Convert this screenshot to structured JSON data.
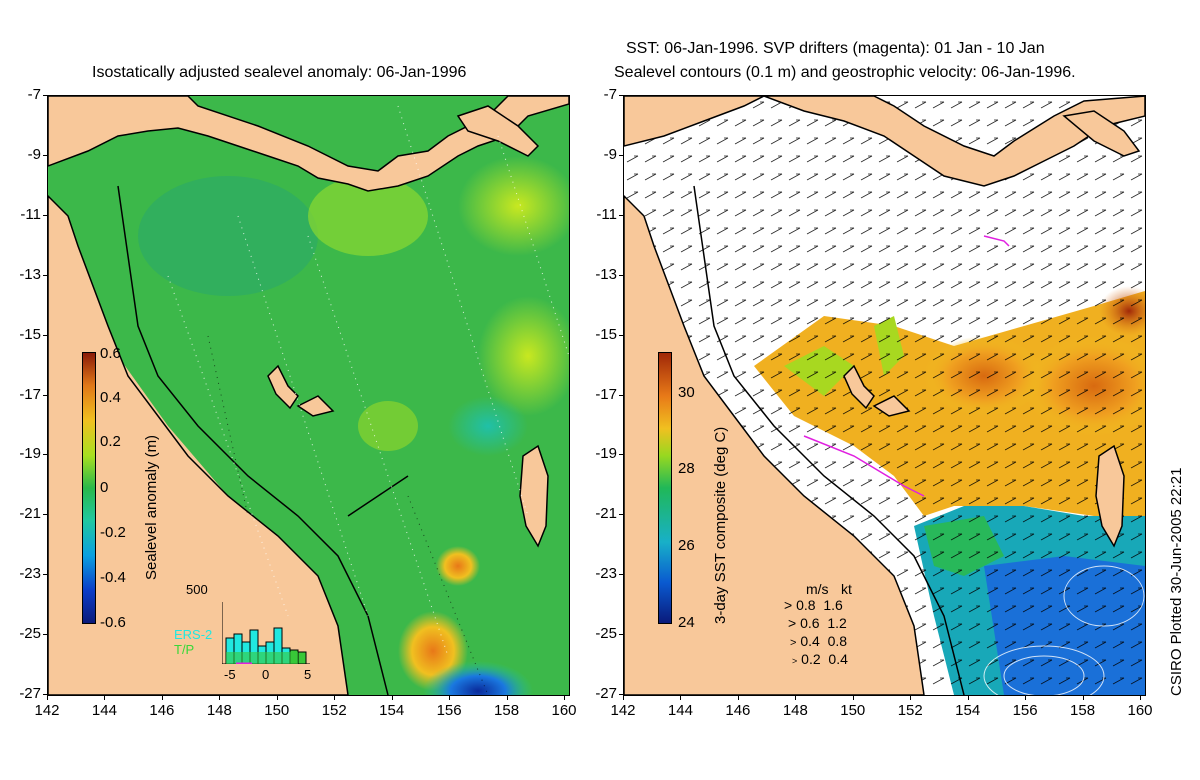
{
  "left": {
    "title": "Isostatically adjusted sealevel anomaly: 06-Jan-1996",
    "colorbar_label": "Sealevel anomaly (m)",
    "colorbar_ticks": [
      "0.6",
      "0.4",
      "0.2",
      "0",
      "-0.2",
      "-0.4",
      "-0.6"
    ],
    "histogram": {
      "ymax_label": "500",
      "x_ticks": [
        "-5",
        "0",
        "5"
      ],
      "legend": [
        "ERS-2",
        "T/P"
      ]
    }
  },
  "right": {
    "title_line1": "SST: 06-Jan-1996. SVP drifters (magenta): 01 Jan - 10 Jan",
    "title_line2": "Sealevel contours (0.1 m) and geostrophic velocity: 06-Jan-1996.",
    "colorbar_label": "3-day SST composite (deg C)",
    "colorbar_ticks": [
      "30",
      "28",
      "26",
      "24"
    ],
    "velocity_legend": {
      "header_ms": "m/s",
      "header_kt": "kt",
      "rows": [
        {
          "ms": "0.8",
          "kt": "1.6"
        },
        {
          "ms": "0.6",
          "kt": "1.2"
        },
        {
          "ms": "0.4",
          "kt": "0.8"
        },
        {
          "ms": "0.2",
          "kt": "0.4"
        }
      ]
    }
  },
  "axes": {
    "lat_ticks": [
      "-7",
      "-9",
      "-11",
      "-13",
      "-15",
      "-17",
      "-19",
      "-21",
      "-23",
      "-25",
      "-27"
    ],
    "lon_ticks": [
      "142",
      "144",
      "146",
      "148",
      "150",
      "152",
      "154",
      "156",
      "158",
      "160"
    ]
  },
  "credit": "CSIRO Plotted 30-Jun-2005 22:21",
  "colors": {
    "land": "#f8c89a",
    "ocean_mid": "#3cb84a",
    "sst_warm": "#e88a18",
    "sst_cool": "#1aa0d8",
    "drifters": "#e020e0"
  }
}
